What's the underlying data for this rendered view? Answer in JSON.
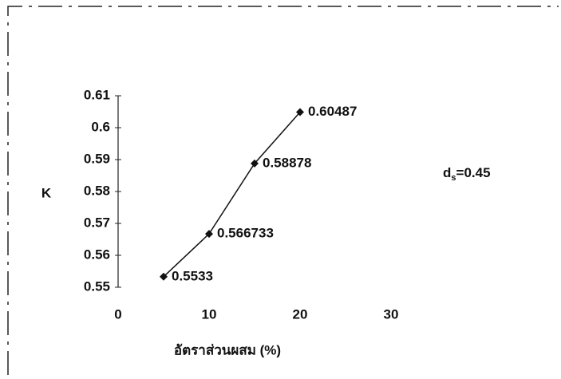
{
  "chart_data": {
    "type": "line",
    "x_label": "อัตราส่วนผสม (%)",
    "y_label": "K",
    "annotation": {
      "base": "d",
      "subscript": "s",
      "rest": "=0.45"
    },
    "x": [
      5,
      10,
      15,
      20
    ],
    "series": [
      {
        "color": "#111111",
        "values": [
          0.5533,
          0.566733,
          0.58878,
          0.60487
        ]
      }
    ],
    "xlim": [
      0,
      30
    ],
    "xticks": [
      0,
      10,
      20,
      30
    ],
    "ylim": [
      0.55,
      0.61
    ],
    "yticks": [
      0.55,
      0.56,
      0.57,
      0.58,
      0.59,
      0.6,
      0.61
    ],
    "grid": false
  }
}
